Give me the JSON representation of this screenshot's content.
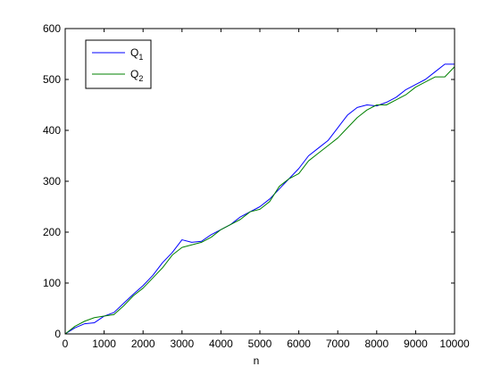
{
  "chart_data": {
    "type": "line",
    "xlabel": "n",
    "ylabel": "",
    "title": "",
    "xlim": [
      0,
      10000
    ],
    "ylim": [
      0,
      600
    ],
    "x_ticks": [
      0,
      1000,
      2000,
      3000,
      4000,
      5000,
      6000,
      7000,
      8000,
      9000,
      10000
    ],
    "y_ticks": [
      0,
      100,
      200,
      300,
      400,
      500,
      600
    ],
    "grid": false,
    "legend_position": "top-left",
    "series": [
      {
        "name": "Q1",
        "name_base": "Q",
        "name_sub": "1",
        "color": "#0000ff",
        "x": [
          0,
          250,
          500,
          750,
          1000,
          1250,
          1500,
          1750,
          2000,
          2250,
          2500,
          2750,
          3000,
          3250,
          3500,
          3750,
          4000,
          4250,
          4500,
          4750,
          5000,
          5250,
          5500,
          5750,
          6000,
          6250,
          6500,
          6750,
          7000,
          7250,
          7500,
          7750,
          8000,
          8250,
          8500,
          8750,
          9000,
          9250,
          9500,
          9750,
          10000
        ],
        "y": [
          0,
          12,
          20,
          22,
          35,
          42,
          60,
          78,
          95,
          115,
          140,
          160,
          185,
          180,
          182,
          195,
          205,
          215,
          230,
          240,
          250,
          265,
          285,
          305,
          325,
          350,
          365,
          380,
          405,
          430,
          445,
          450,
          448,
          455,
          465,
          480,
          490,
          500,
          515,
          530,
          530
        ]
      },
      {
        "name": "Q2",
        "name_base": "Q",
        "name_sub": "2",
        "color": "#008000",
        "x": [
          0,
          250,
          500,
          750,
          1000,
          1250,
          1500,
          1750,
          2000,
          2250,
          2500,
          2750,
          3000,
          3250,
          3500,
          3750,
          4000,
          4250,
          4500,
          4750,
          5000,
          5250,
          5500,
          5750,
          6000,
          6250,
          6500,
          6750,
          7000,
          7250,
          7500,
          7750,
          8000,
          8250,
          8500,
          8750,
          9000,
          9250,
          9500,
          9750,
          10000
        ],
        "y": [
          0,
          15,
          25,
          32,
          35,
          38,
          55,
          75,
          90,
          110,
          130,
          155,
          170,
          175,
          180,
          190,
          205,
          215,
          225,
          240,
          245,
          260,
          290,
          305,
          315,
          340,
          355,
          370,
          385,
          405,
          425,
          440,
          450,
          450,
          460,
          470,
          485,
          495,
          505,
          505,
          525
        ]
      }
    ]
  }
}
